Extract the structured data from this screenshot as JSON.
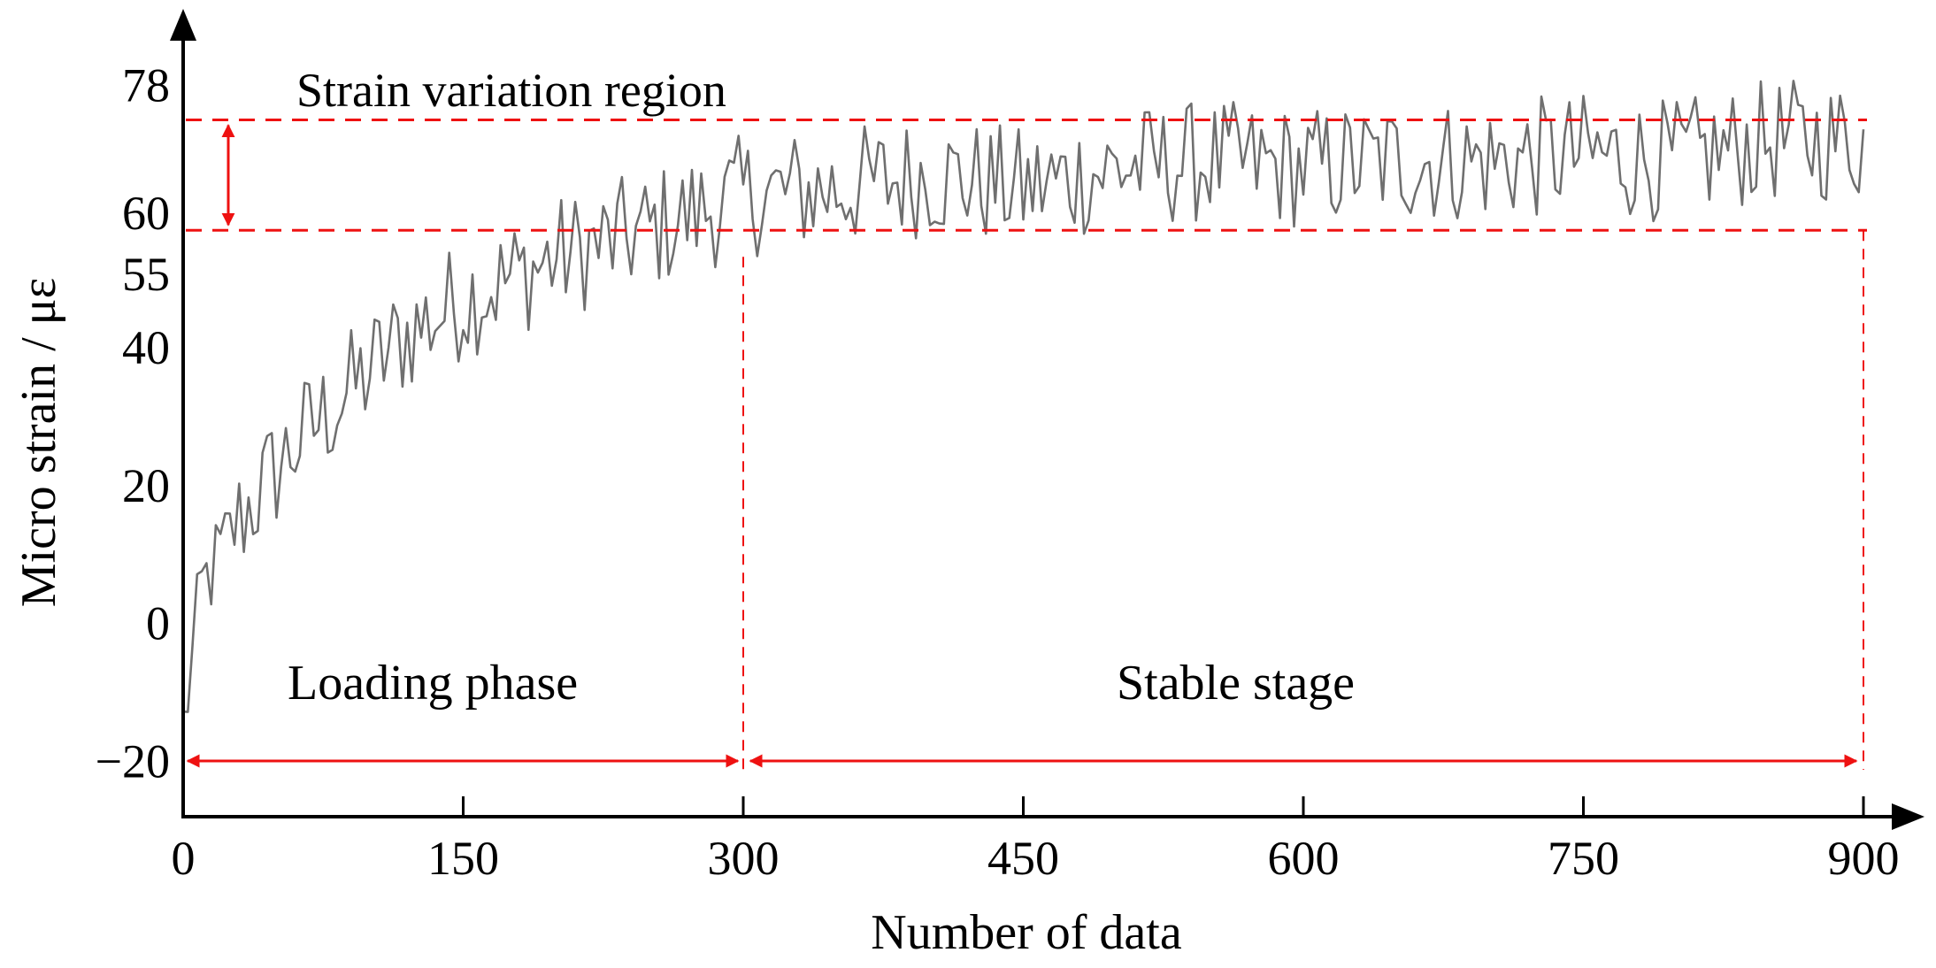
{
  "chart_data": {
    "type": "line",
    "title": "",
    "xlabel": "Number of data",
    "ylabel": "Micro strain / με",
    "xlim": [
      0,
      900
    ],
    "ylim": [
      -28,
      85
    ],
    "x_ticks": [
      0,
      150,
      300,
      450,
      600,
      750,
      900
    ],
    "x_tick_labels": [
      "0",
      "150",
      "300",
      "450",
      "600",
      "750",
      "900"
    ],
    "y_ticks": [
      -20,
      0,
      20,
      40,
      55,
      60,
      78
    ],
    "y_tick_labels": [
      "−20",
      "0",
      "20",
      "40",
      "55",
      "60",
      "78"
    ],
    "grid": false,
    "series": [
      {
        "name": "Micro strain",
        "color": "#6f6f6f",
        "sample_step": 5,
        "trend": {
          "x": [
            0,
            10,
            30,
            60,
            90,
            120,
            150,
            200,
            250,
            300,
            350,
            400,
            450,
            500,
            550,
            600,
            650,
            700,
            750,
            800,
            850,
            900
          ],
          "y": [
            -15,
            5,
            15,
            26,
            34,
            42,
            47,
            53,
            57,
            62,
            63,
            65,
            63,
            66,
            67,
            66,
            67,
            67,
            68,
            67,
            70,
            70
          ]
        },
        "noise_amplitude": 9
      }
    ],
    "reference_lines": {
      "upper_strain": 73,
      "lower_strain": 57,
      "phase_boundary_x": 300,
      "end_x": 900
    },
    "annotations": {
      "region_label": "Strain variation region",
      "loading_label": "Loading phase",
      "stable_label": "Stable stage"
    },
    "colors": {
      "annotation": "#ee1111",
      "axis": "#000000",
      "data": "#6f6f6f"
    }
  }
}
